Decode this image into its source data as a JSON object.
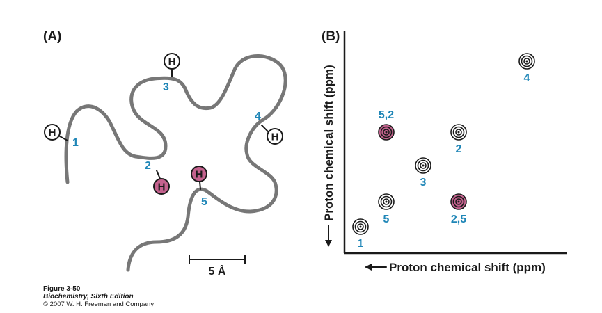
{
  "panel_a": {
    "label": "(A)",
    "hydrogen_symbol": "H",
    "protons": [
      {
        "id": "1",
        "label": "1",
        "state": "normal"
      },
      {
        "id": "2",
        "label": "2",
        "state": "highlighted"
      },
      {
        "id": "3",
        "label": "3",
        "state": "normal"
      },
      {
        "id": "4",
        "label": "4",
        "state": "normal"
      },
      {
        "id": "5",
        "label": "5",
        "state": "highlighted"
      }
    ],
    "scale_bar": "5 Å"
  },
  "panel_b": {
    "label": "(B)",
    "x_axis_label": "Proton chemical shift (ppm)",
    "y_axis_label": "Proton chemical shift (ppm)",
    "peaks": [
      {
        "label": "1",
        "state": "diagonal"
      },
      {
        "label": "5",
        "state": "diagonal"
      },
      {
        "label": "3",
        "state": "diagonal"
      },
      {
        "label": "2",
        "state": "diagonal"
      },
      {
        "label": "4",
        "state": "diagonal"
      },
      {
        "label": "5,2",
        "state": "cross"
      },
      {
        "label": "2,5",
        "state": "cross"
      }
    ]
  },
  "caption": {
    "figure": "Figure 3-50",
    "book": "Biochemistry, Sixth Edition",
    "copyright": "© 2007 W. H. Freeman and Company"
  },
  "colors": {
    "highlight": "#c4628e",
    "label_blue": "#1f86b7",
    "chain_gray": "#777777",
    "ink": "#1a1a1a"
  }
}
